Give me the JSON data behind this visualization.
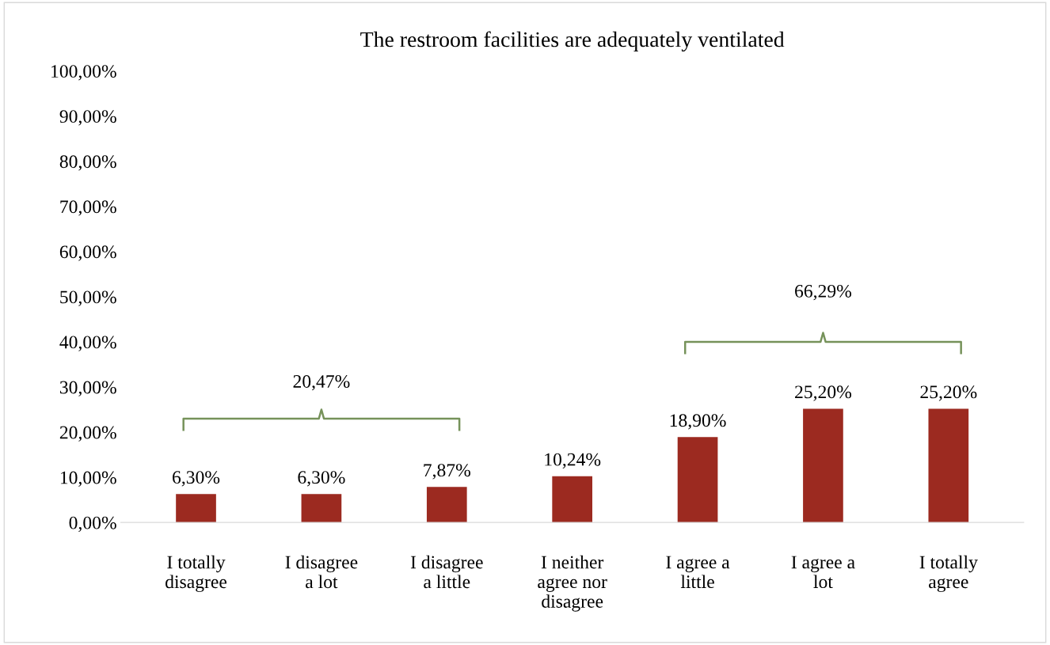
{
  "chart_data": {
    "type": "bar",
    "title": "The restroom facilities are adequately ventilated",
    "categories": [
      "I totally\ndisagree",
      "I disagree\na lot",
      "I disagree\na little",
      "I neither\nagree nor\ndisagree",
      "I agree a\nlittle",
      "I agree a\nlot",
      "I totally\nagree"
    ],
    "values": [
      6.3,
      6.3,
      7.87,
      10.24,
      18.9,
      25.2,
      25.2
    ],
    "value_labels": [
      "6,30%",
      "6,30%",
      "7,87%",
      "10,24%",
      "18,90%",
      "25,20%",
      "25,20%"
    ],
    "color": "#9c2a20",
    "ylim": [
      0,
      100
    ],
    "yticks": [
      {
        "value": 0,
        "label": "0,00%"
      },
      {
        "value": 10,
        "label": "10,00%"
      },
      {
        "value": 20,
        "label": "20,00%"
      },
      {
        "value": 30,
        "label": "30,00%"
      },
      {
        "value": 40,
        "label": "40,00%"
      },
      {
        "value": 50,
        "label": "50,00%"
      },
      {
        "value": 60,
        "label": "60,00%"
      },
      {
        "value": 70,
        "label": "70,00%"
      },
      {
        "value": 80,
        "label": "80,00%"
      },
      {
        "value": 90,
        "label": "90,00%"
      },
      {
        "value": 100,
        "label": "100,00%"
      }
    ],
    "annotations": [
      "20,47%",
      "66,29%"
    ],
    "grid": false
  }
}
